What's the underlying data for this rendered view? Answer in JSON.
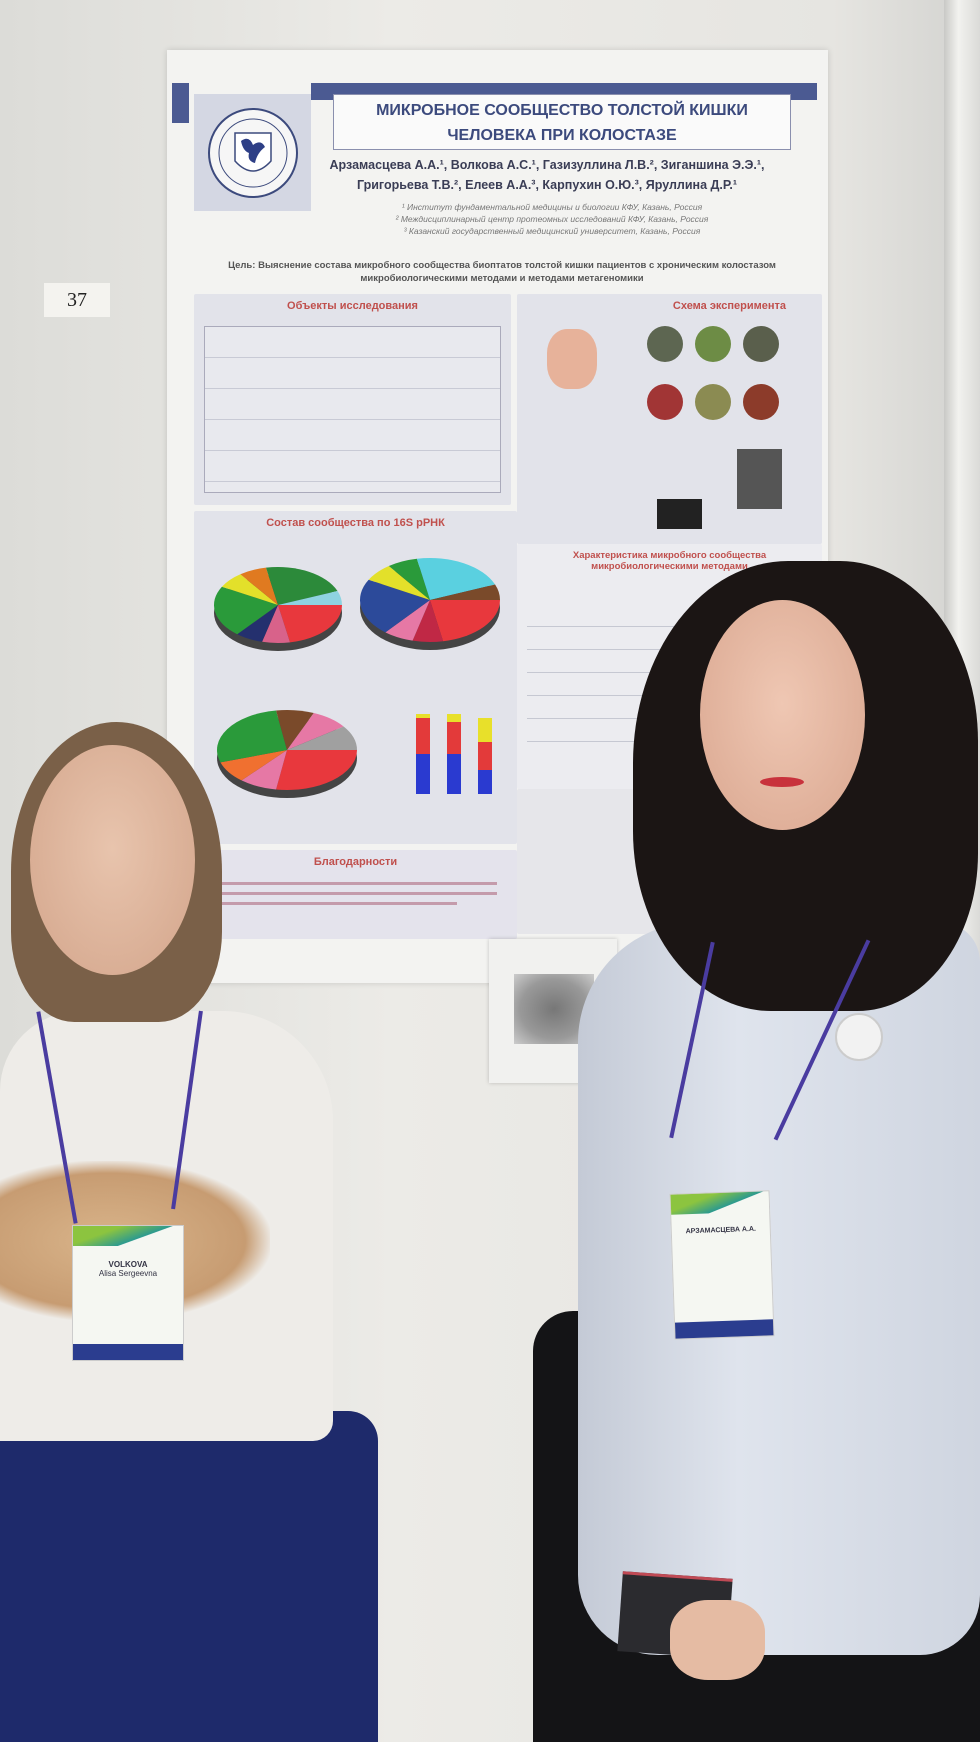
{
  "booth_number": "37",
  "poster": {
    "title_line1": "МИКРОБНОЕ СООБЩЕСТВО ТОЛСТОЙ КИШКИ",
    "title_line2": "ЧЕЛОВЕКА ПРИ КОЛОСТАЗЕ",
    "authors_line1": "Арзамасцева А.А.¹, Волкова А.С.¹, Газизуллина Л.В.², Зиганшина Э.Э.¹,",
    "authors_line2": "Григорьева Т.В.², Елеев А.А.³, Карпухин О.Ю.³, Яруллина Д.Р.¹",
    "affiliations": [
      "¹ Институт фундаментальной медицины и биологии КФУ, Казань, Россия",
      "² Междисциплинарный центр протеомных исследований КФУ, Казань, Россия",
      "³ Казанский государственный медицинский университет, Казань, Россия"
    ],
    "goal_line1": "Цель: Выяснение состава микробного сообщества биоптатов толстой кишки пациентов с хроническим колостазом",
    "goal_line2": "микробиологическими методами и методами метагеномики",
    "sections": {
      "objects": "Объекты исследования",
      "scheme": "Схема эксперимента",
      "composition": "Состав сообщества по 16S рРНК",
      "characteristics": "Характеристика микробного сообщества микробиологическими методами",
      "acknowledgements": "Благодарности"
    }
  },
  "badges": {
    "left_name": "VOLKOVA",
    "left_given": "Alisa Sergeevna",
    "right_name": "АРЗАМАСЦЕВА А.А."
  },
  "colors": {
    "poster_accent": "#4b5a92",
    "section_heading": "#c0504d",
    "badge_footer": "#2b3d8f"
  }
}
